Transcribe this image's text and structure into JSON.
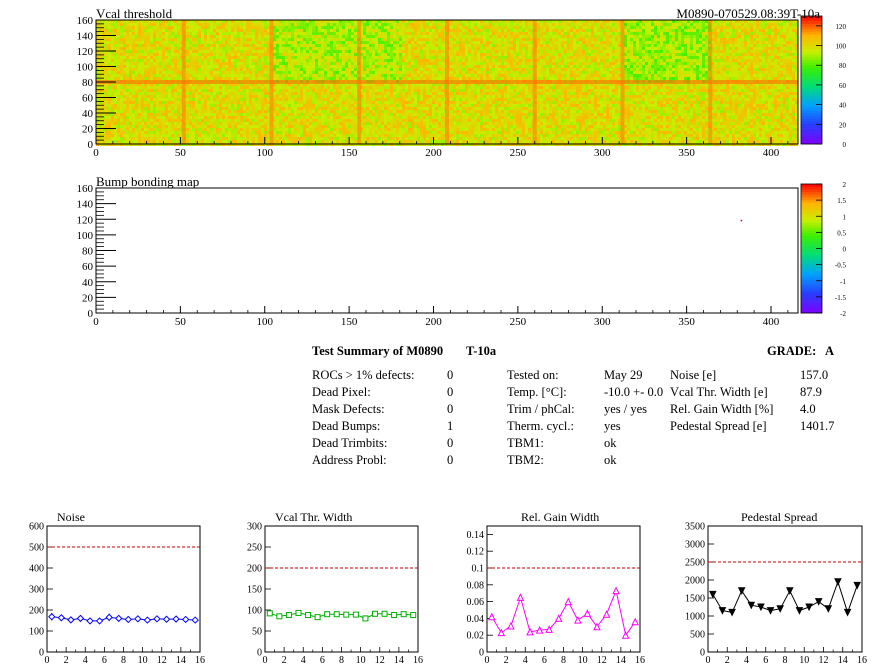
{
  "header": {
    "title": "Vcal threshold",
    "module_id": "M0890-070529.08:39T-10a"
  },
  "bump_title": "Bump bonding map",
  "map_x_ticks": [
    "0",
    "50",
    "100",
    "150",
    "200",
    "250",
    "300",
    "350",
    "400"
  ],
  "map_y_ticks": [
    "0",
    "20",
    "40",
    "60",
    "80",
    "100",
    "120",
    "140",
    "160"
  ],
  "vcal_scale_ticks": [
    "0",
    "20",
    "40",
    "60",
    "80",
    "100",
    "120"
  ],
  "bump_scale_ticks": [
    "-2",
    "-1.5",
    "-1",
    "-0.5",
    "0",
    "0.5",
    "1",
    "1.5",
    "2"
  ],
  "summary": {
    "title": "Test Summary of M0890",
    "temp_tag": "T-10a",
    "grade_label": "GRADE:",
    "grade_value": "A",
    "col1": [
      {
        "label": "ROCs > 1% defects:",
        "value": "0"
      },
      {
        "label": "Dead Pixel:",
        "value": "0"
      },
      {
        "label": "Mask Defects:",
        "value": "0"
      },
      {
        "label": "Dead Bumps:",
        "value": "1"
      },
      {
        "label": "Dead Trimbits:",
        "value": "0"
      },
      {
        "label": "Address Probl:",
        "value": "0"
      }
    ],
    "col2": [
      {
        "label": "Tested on:",
        "value": "May 29"
      },
      {
        "label": "Temp. [°C]:",
        "value": "-10.0 +- 0.0"
      },
      {
        "label": "Trim / phCal:",
        "value": "yes / yes"
      },
      {
        "label": "Therm. cycl.:",
        "value": "yes"
      },
      {
        "label": "TBM1:",
        "value": "ok"
      },
      {
        "label": "TBM2:",
        "value": "ok"
      }
    ],
    "col3": [
      {
        "label": "Noise [e]",
        "value": "157.0"
      },
      {
        "label": "Vcal Thr. Width [e]",
        "value": "87.9"
      },
      {
        "label": "Rel. Gain Width [%]",
        "value": "4.0"
      },
      {
        "label": "Pedestal Spread [e]",
        "value": "1401.7"
      }
    ]
  },
  "chart_data": [
    {
      "type": "heatmap",
      "title": "Vcal threshold",
      "xlim": [
        0,
        416
      ],
      "ylim": [
        0,
        160
      ],
      "colorbar_range": [
        0,
        130
      ],
      "roc_boundaries_x": [
        52,
        104,
        156,
        208,
        260,
        312,
        364
      ],
      "roc_boundary_y": 80
    },
    {
      "type": "heatmap",
      "title": "Bump bonding map",
      "xlim": [
        0,
        416
      ],
      "ylim": [
        0,
        160
      ],
      "colorbar_range": [
        -2,
        2
      ],
      "points": [
        {
          "x": 382,
          "y": 118
        }
      ]
    },
    {
      "type": "line",
      "title": "Noise",
      "x": [
        0,
        1,
        2,
        3,
        4,
        5,
        6,
        7,
        8,
        9,
        10,
        11,
        12,
        13,
        14,
        15
      ],
      "values": [
        168,
        163,
        153,
        160,
        148,
        148,
        165,
        160,
        155,
        158,
        152,
        158,
        156,
        157,
        155,
        152
      ],
      "errors": [
        18,
        15,
        14,
        12,
        13,
        12,
        18,
        14,
        14,
        14,
        12,
        13,
        13,
        13,
        13,
        12
      ],
      "threshold": 500,
      "xlim": [
        0,
        16
      ],
      "ylim": [
        0,
        600
      ],
      "x_ticks": [
        "0",
        "2",
        "4",
        "6",
        "8",
        "10",
        "12",
        "14",
        "16"
      ],
      "y_ticks": [
        "0",
        "100",
        "200",
        "300",
        "400",
        "500",
        "600"
      ],
      "color": "#0000ff",
      "marker": "diamond"
    },
    {
      "type": "line",
      "title": "Vcal Thr. Width",
      "x": [
        0,
        1,
        2,
        3,
        4,
        5,
        6,
        7,
        8,
        9,
        10,
        11,
        12,
        13,
        14,
        15
      ],
      "values": [
        92,
        85,
        88,
        93,
        88,
        83,
        90,
        90,
        89,
        89,
        80,
        91,
        91,
        88,
        90,
        88
      ],
      "threshold": 200,
      "xlim": [
        0,
        16
      ],
      "ylim": [
        0,
        300
      ],
      "x_ticks": [
        "0",
        "2",
        "4",
        "6",
        "8",
        "10",
        "12",
        "14",
        "16"
      ],
      "y_ticks": [
        "0",
        "50",
        "100",
        "150",
        "200",
        "250",
        "300"
      ],
      "color": "#00b000",
      "marker": "square"
    },
    {
      "type": "line",
      "title": "Rel. Gain Width",
      "x": [
        0,
        1,
        2,
        3,
        4,
        5,
        6,
        7,
        8,
        9,
        10,
        11,
        12,
        13,
        14,
        15
      ],
      "values": [
        0.042,
        0.023,
        0.031,
        0.065,
        0.024,
        0.026,
        0.027,
        0.04,
        0.06,
        0.038,
        0.046,
        0.03,
        0.045,
        0.073,
        0.02,
        0.036
      ],
      "threshold": 0.1,
      "xlim": [
        0,
        16
      ],
      "ylim": [
        0,
        0.15
      ],
      "x_ticks": [
        "0",
        "2",
        "4",
        "6",
        "8",
        "10",
        "12",
        "14",
        "16"
      ],
      "y_ticks": [
        "0",
        "0.02",
        "0.04",
        "0.06",
        "0.08",
        "0.1",
        "0.12",
        "0.14"
      ],
      "color": "#ff00ff",
      "marker": "triangle-up"
    },
    {
      "type": "line",
      "title": "Pedestal Spread",
      "x": [
        0,
        1,
        2,
        3,
        4,
        5,
        6,
        7,
        8,
        9,
        10,
        11,
        12,
        13,
        14,
        15
      ],
      "values": [
        1600,
        1150,
        1100,
        1700,
        1300,
        1250,
        1150,
        1200,
        1700,
        1150,
        1250,
        1400,
        1200,
        1950,
        1100,
        1850
      ],
      "threshold": 2500,
      "xlim": [
        0,
        16
      ],
      "ylim": [
        0,
        3500
      ],
      "x_ticks": [
        "0",
        "2",
        "4",
        "6",
        "8",
        "10",
        "12",
        "14",
        "16"
      ],
      "y_ticks": [
        "0",
        "500",
        "1000",
        "1500",
        "2000",
        "2500",
        "3000",
        "3500"
      ],
      "color": "#000000",
      "marker": "triangle-down"
    }
  ]
}
